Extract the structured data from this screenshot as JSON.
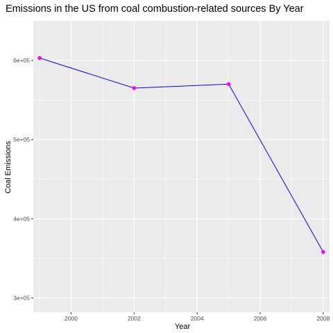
{
  "chart_data": {
    "type": "line",
    "title": "Emissions in the US from coal combustion-related sources By Year",
    "xlabel": "Year",
    "ylabel": "Coal Emissions",
    "x": [
      1999,
      2002,
      2005,
      2008
    ],
    "series": [
      {
        "values": [
          603000,
          565000,
          570000,
          358000
        ]
      }
    ],
    "xlim": [
      1998.8,
      2008.2
    ],
    "ylim": [
      282000,
      650000
    ],
    "x_ticks": [
      2000,
      2002,
      2004,
      2006,
      2008
    ],
    "x_tick_labels": [
      "2000",
      "2002",
      "2004",
      "2006",
      "2008"
    ],
    "y_ticks": [
      300000,
      400000,
      500000,
      600000
    ],
    "y_tick_labels": [
      "3e+05",
      "4e+05",
      "5e+05",
      "6e+05"
    ],
    "grid": true,
    "colors": {
      "line": "#0000ff",
      "points": "#ff00ff",
      "panel": "#ebebeb",
      "grid": "#ffffff"
    }
  }
}
